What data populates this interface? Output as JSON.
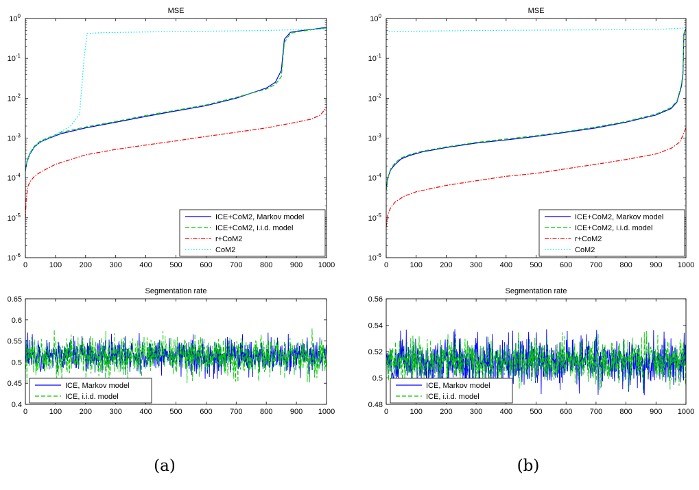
{
  "captions": [
    "(a)",
    "(b)"
  ],
  "chart_data": [
    {
      "type": "line",
      "panel": "a-top",
      "title": "MSE",
      "xlabel": "",
      "ylabel": "",
      "xlim": [
        0,
        1000
      ],
      "ylim": [
        1e-06,
        1
      ],
      "yscale": "log",
      "x_ticks": [
        "0",
        "100",
        "200",
        "300",
        "400",
        "500",
        "600",
        "700",
        "800",
        "900",
        "1000"
      ],
      "y_ticks": [
        "10^-6",
        "10^-5",
        "10^-4",
        "10^-3",
        "10^-2",
        "10^-1",
        "10^0"
      ],
      "legend_position": "bottom-right",
      "series": [
        {
          "name": "ICE+CoM2, Markov model",
          "color": "#0000ff",
          "style": "solid",
          "x": [
            0,
            5,
            15,
            30,
            50,
            80,
            120,
            200,
            300,
            400,
            500,
            600,
            700,
            800,
            830,
            850,
            860,
            880,
            900,
            950,
            1000
          ],
          "y": [
            0.00015,
            0.00025,
            0.0004,
            0.0006,
            0.0008,
            0.001,
            0.0013,
            0.0018,
            0.0025,
            0.0035,
            0.0048,
            0.0065,
            0.01,
            0.018,
            0.025,
            0.05,
            0.3,
            0.45,
            0.48,
            0.53,
            0.6
          ]
        },
        {
          "name": "ICE+CoM2, i.i.d. model",
          "color": "#00c800",
          "style": "dashed",
          "x": [
            0,
            5,
            15,
            30,
            50,
            80,
            120,
            200,
            300,
            400,
            500,
            600,
            700,
            800,
            830,
            850,
            860,
            880,
            900,
            950,
            1000
          ],
          "y": [
            0.00015,
            0.00027,
            0.00042,
            0.00063,
            0.00085,
            0.00105,
            0.0014,
            0.0019,
            0.0026,
            0.0037,
            0.005,
            0.0068,
            0.0105,
            0.017,
            0.022,
            0.035,
            0.25,
            0.42,
            0.46,
            0.52,
            0.58
          ]
        },
        {
          "name": "r+CoM2",
          "color": "#ff0000",
          "style": "dashdot",
          "x": [
            0,
            3,
            8,
            15,
            30,
            50,
            100,
            200,
            300,
            400,
            500,
            600,
            700,
            800,
            900,
            950,
            980,
            1000
          ],
          "y": [
            1e-05,
            3e-05,
            6e-05,
            8e-05,
            0.00011,
            0.00014,
            0.00022,
            0.00038,
            0.00052,
            0.00067,
            0.00085,
            0.0011,
            0.0014,
            0.0018,
            0.0025,
            0.003,
            0.0038,
            0.006
          ]
        },
        {
          "name": "CoM2",
          "color": "#00e0e0",
          "style": "dotted",
          "x": [
            0,
            20,
            50,
            100,
            150,
            180,
            195,
            205,
            250,
            400,
            600,
            800,
            1000
          ],
          "y": [
            0.0002,
            0.0005,
            0.0008,
            0.0012,
            0.002,
            0.004,
            0.1,
            0.42,
            0.44,
            0.46,
            0.48,
            0.5,
            0.55
          ]
        }
      ]
    },
    {
      "type": "line",
      "panel": "b-top",
      "title": "MSE",
      "xlabel": "",
      "ylabel": "",
      "xlim": [
        0,
        1000
      ],
      "ylim": [
        1e-06,
        1
      ],
      "yscale": "log",
      "x_ticks": [
        "0",
        "100",
        "200",
        "300",
        "400",
        "500",
        "600",
        "700",
        "800",
        "900",
        "1000"
      ],
      "y_ticks": [
        "10^-6",
        "10^-5",
        "10^-4",
        "10^-3",
        "10^-2",
        "10^-1",
        "10^0"
      ],
      "legend_position": "bottom-right",
      "series": [
        {
          "name": "ICE+CoM2, Markov model",
          "color": "#0000ff",
          "style": "solid",
          "x": [
            0,
            5,
            15,
            30,
            50,
            80,
            120,
            200,
            300,
            400,
            500,
            600,
            700,
            800,
            900,
            950,
            970,
            985,
            990,
            993,
            1000
          ],
          "y": [
            5e-05,
            0.0001,
            0.00016,
            0.00022,
            0.0003,
            0.00037,
            0.00045,
            0.00058,
            0.00075,
            0.0009,
            0.0011,
            0.0014,
            0.0018,
            0.0025,
            0.0038,
            0.0055,
            0.008,
            0.02,
            0.04,
            0.4,
            0.55
          ]
        },
        {
          "name": "ICE+CoM2, i.i.d. model",
          "color": "#00c800",
          "style": "dashed",
          "x": [
            0,
            5,
            15,
            30,
            50,
            80,
            120,
            200,
            300,
            400,
            500,
            600,
            700,
            800,
            900,
            950,
            970,
            985,
            990,
            993,
            1000
          ],
          "y": [
            5e-05,
            0.0001,
            0.00017,
            0.00024,
            0.00032,
            0.00039,
            0.00047,
            0.0006,
            0.00078,
            0.00095,
            0.00115,
            0.00145,
            0.0019,
            0.0026,
            0.004,
            0.0058,
            0.0085,
            0.022,
            0.045,
            0.42,
            0.56
          ]
        },
        {
          "name": "r+CoM2",
          "color": "#ff0000",
          "style": "dashdot",
          "x": [
            0,
            5,
            15,
            30,
            60,
            100,
            200,
            300,
            400,
            500,
            600,
            700,
            800,
            900,
            950,
            980,
            1000
          ],
          "y": [
            6e-06,
            1.2e-05,
            1.8e-05,
            2.5e-05,
            3.5e-05,
            4.5e-05,
            6.5e-05,
            8.5e-05,
            0.00011,
            0.00013,
            0.00017,
            0.00022,
            0.00029,
            0.0004,
            0.00055,
            0.0008,
            0.0018
          ]
        },
        {
          "name": "CoM2",
          "color": "#00e0e0",
          "style": "dotted",
          "x": [
            0,
            5,
            100,
            300,
            500,
            700,
            900,
            1000
          ],
          "y": [
            0.45,
            0.47,
            0.48,
            0.5,
            0.51,
            0.52,
            0.53,
            0.58
          ]
        }
      ]
    },
    {
      "type": "line",
      "panel": "a-bottom",
      "title": "Segmentation rate",
      "xlabel": "",
      "ylabel": "",
      "xlim": [
        0,
        1000
      ],
      "ylim": [
        0.4,
        0.65
      ],
      "x_ticks": [
        "0",
        "100",
        "200",
        "300",
        "400",
        "500",
        "600",
        "700",
        "800",
        "900",
        "1000"
      ],
      "y_ticks": [
        "0.4",
        "0.45",
        "0.5",
        "0.55",
        "0.6",
        "0.65"
      ],
      "legend_position": "bottom-left",
      "series": [
        {
          "name": "ICE, Markov model",
          "color": "#0000ff",
          "style": "solid",
          "mean": 0.515,
          "range": [
            0.46,
            0.59
          ],
          "n": 1000
        },
        {
          "name": "ICE, i.i.d. model",
          "color": "#00c800",
          "style": "dashed",
          "mean": 0.515,
          "range": [
            0.44,
            0.58
          ],
          "n": 1000
        }
      ]
    },
    {
      "type": "line",
      "panel": "b-bottom",
      "title": "Segmentation rate",
      "xlabel": "",
      "ylabel": "",
      "xlim": [
        0,
        1000
      ],
      "ylim": [
        0.48,
        0.56
      ],
      "x_ticks": [
        "0",
        "100",
        "200",
        "300",
        "400",
        "500",
        "600",
        "700",
        "800",
        "900",
        "1000"
      ],
      "y_ticks": [
        "0.48",
        "0.5",
        "0.52",
        "0.54",
        "0.56"
      ],
      "legend_position": "bottom-left",
      "series": [
        {
          "name": "ICE, Markov model",
          "color": "#0000ff",
          "style": "solid",
          "mean": 0.512,
          "range": [
            0.487,
            0.544
          ],
          "n": 1000
        },
        {
          "name": "ICE, i.i.d. model",
          "color": "#00c800",
          "style": "dashed",
          "mean": 0.513,
          "range": [
            0.49,
            0.54
          ],
          "n": 1000
        }
      ]
    }
  ]
}
